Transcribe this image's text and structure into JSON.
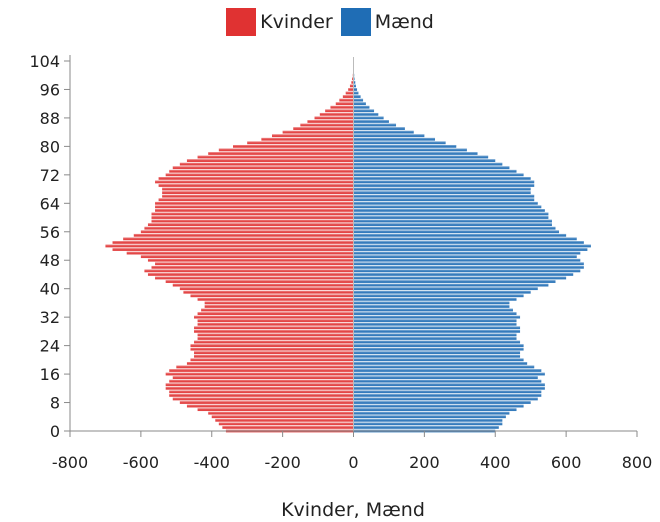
{
  "legend": [
    {
      "label": "Kvinder",
      "color": "#e03232"
    },
    {
      "label": "Mænd",
      "color": "#1f6db5"
    }
  ],
  "chart_data": {
    "type": "bar",
    "orientation": "horizontal",
    "title": "",
    "xlabel": "Kvinder, Mænd",
    "ylabel": "",
    "xlim": [
      -800,
      800
    ],
    "ylim": [
      0,
      104
    ],
    "x_ticks": [
      "-800",
      "-600",
      "-400",
      "-200",
      "0",
      "200",
      "400",
      "600",
      "800"
    ],
    "y_ticks": [
      "0",
      "8",
      "16",
      "24",
      "32",
      "40",
      "48",
      "56",
      "64",
      "72",
      "80",
      "88",
      "96",
      "104"
    ],
    "grid": false,
    "legend_position": "top",
    "categories": [
      0,
      1,
      2,
      3,
      4,
      5,
      6,
      7,
      8,
      9,
      10,
      11,
      12,
      13,
      14,
      15,
      16,
      17,
      18,
      19,
      20,
      21,
      22,
      23,
      24,
      25,
      26,
      27,
      28,
      29,
      30,
      31,
      32,
      33,
      34,
      35,
      36,
      37,
      38,
      39,
      40,
      41,
      42,
      43,
      44,
      45,
      46,
      47,
      48,
      49,
      50,
      51,
      52,
      53,
      54,
      55,
      56,
      57,
      58,
      59,
      60,
      61,
      62,
      63,
      64,
      65,
      66,
      67,
      68,
      69,
      70,
      71,
      72,
      73,
      74,
      75,
      76,
      77,
      78,
      79,
      80,
      81,
      82,
      83,
      84,
      85,
      86,
      87,
      88,
      89,
      90,
      91,
      92,
      93,
      94,
      95,
      96,
      97,
      98,
      99,
      100,
      101,
      102,
      103,
      104
    ],
    "series": [
      {
        "name": "Kvinder",
        "color": "#e03232",
        "values": [
          -360,
          -370,
          -380,
          -390,
          -400,
          -410,
          -440,
          -470,
          -490,
          -510,
          -520,
          -520,
          -530,
          -530,
          -520,
          -510,
          -530,
          -520,
          -500,
          -470,
          -460,
          -450,
          -450,
          -460,
          -460,
          -450,
          -440,
          -440,
          -450,
          -450,
          -440,
          -440,
          -450,
          -440,
          -430,
          -420,
          -420,
          -440,
          -460,
          -480,
          -490,
          -510,
          -530,
          -560,
          -580,
          -590,
          -570,
          -560,
          -580,
          -600,
          -640,
          -680,
          -700,
          -680,
          -650,
          -620,
          -600,
          -590,
          -580,
          -570,
          -570,
          -570,
          -560,
          -560,
          -560,
          -550,
          -540,
          -540,
          -540,
          -550,
          -560,
          -550,
          -530,
          -520,
          -510,
          -490,
          -470,
          -440,
          -410,
          -380,
          -340,
          -300,
          -260,
          -230,
          -200,
          -170,
          -150,
          -130,
          -110,
          -95,
          -80,
          -65,
          -50,
          -40,
          -30,
          -22,
          -15,
          -10,
          -6,
          -4,
          -2,
          -1,
          -1,
          0,
          0
        ]
      },
      {
        "name": "Mænd",
        "color": "#1f6db5",
        "values": [
          400,
          410,
          420,
          420,
          430,
          440,
          460,
          480,
          500,
          520,
          530,
          530,
          540,
          540,
          530,
          520,
          540,
          530,
          510,
          490,
          480,
          470,
          470,
          480,
          480,
          470,
          460,
          460,
          470,
          470,
          460,
          460,
          470,
          460,
          450,
          440,
          440,
          460,
          480,
          500,
          520,
          550,
          570,
          600,
          620,
          640,
          650,
          650,
          640,
          630,
          640,
          660,
          670,
          650,
          630,
          600,
          580,
          570,
          560,
          560,
          550,
          550,
          540,
          530,
          520,
          510,
          510,
          500,
          500,
          510,
          510,
          500,
          480,
          460,
          440,
          420,
          400,
          380,
          350,
          320,
          290,
          260,
          230,
          200,
          170,
          145,
          120,
          100,
          85,
          70,
          58,
          45,
          35,
          27,
          20,
          14,
          10,
          7,
          5,
          3,
          2,
          1,
          1,
          0,
          0
        ]
      }
    ]
  }
}
